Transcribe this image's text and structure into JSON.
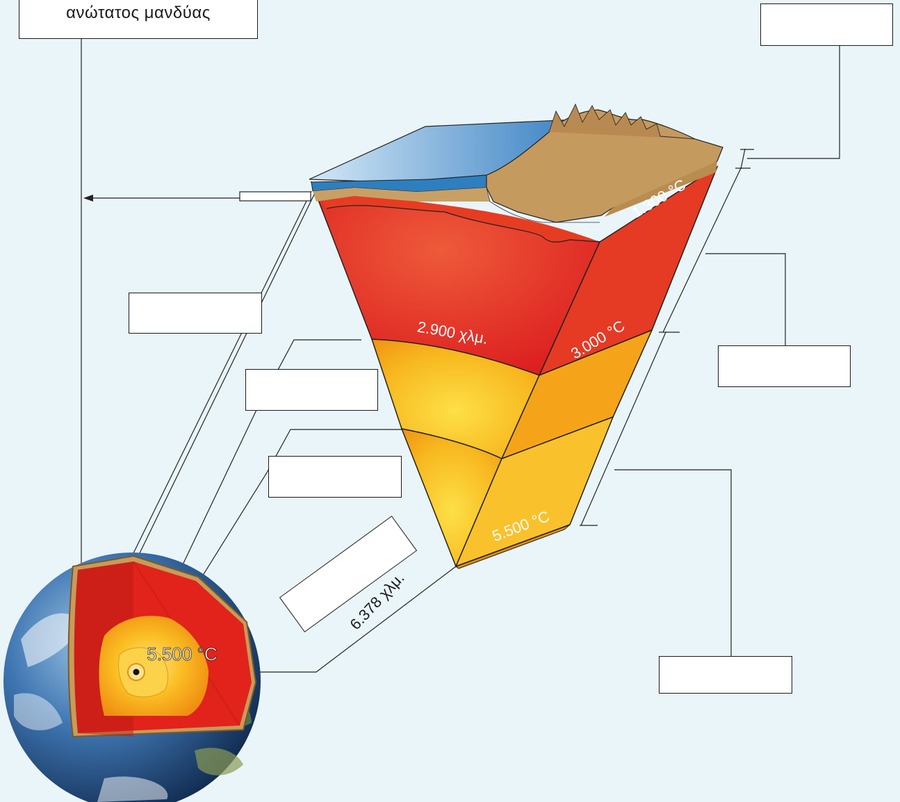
{
  "labels": {
    "upper_mantle": "ανώτατος μανδύας",
    "depth_mantle_base": "2.900 χλμ.",
    "earth_radius": "6.378 χλμ.",
    "temp_lithosphere_base": "1.300 °C",
    "temp_core_mantle_boundary": "3.000 °C",
    "temp_center_wedge": "5.500 °C",
    "temp_center_globe": "5.500 °C"
  },
  "blank_label_boxes": 8,
  "colors": {
    "background": "#eaf5fa",
    "mantle_red": "#e2231a",
    "outer_core_orange": "#f29a14",
    "inner_core_yellow": "#fdd835",
    "crust_brown": "#c49a5e",
    "ocean_blue": "#3b8fc9"
  }
}
